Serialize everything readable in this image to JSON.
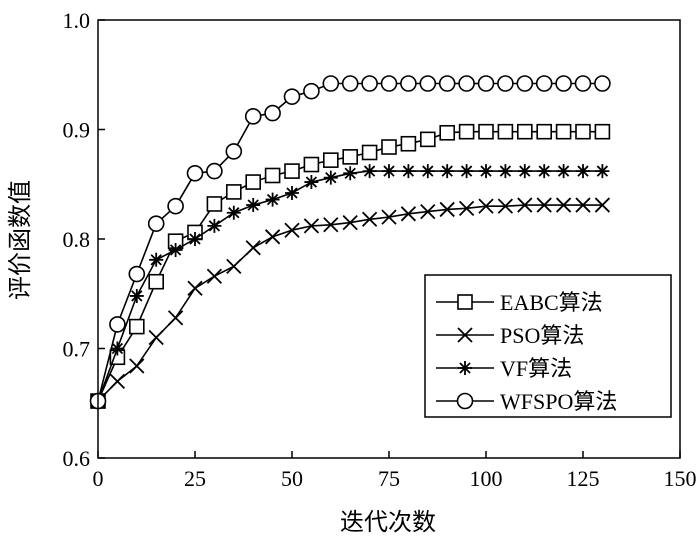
{
  "chart_data": {
    "type": "line",
    "title": "",
    "xlabel": "迭代次数",
    "ylabel": "评价函数值",
    "xlim": [
      0,
      150
    ],
    "ylim": [
      0.6,
      1.0
    ],
    "xticks": [
      0,
      25,
      50,
      75,
      100,
      125,
      150
    ],
    "yticks": [
      0.6,
      0.7,
      0.8,
      0.9,
      1.0
    ],
    "xtick_labels": [
      "0",
      "25",
      "50",
      "75",
      "100",
      "125",
      "150"
    ],
    "ytick_labels": [
      "0.6",
      "0.7",
      "0.8",
      "0.9",
      "1.0"
    ],
    "grid": false,
    "legend_position": "bottom-right",
    "series": [
      {
        "name": "EABC算法",
        "marker": "square",
        "x": [
          0,
          5,
          10,
          15,
          20,
          25,
          30,
          35,
          40,
          45,
          50,
          55,
          60,
          65,
          70,
          75,
          80,
          85,
          90,
          95,
          100,
          105,
          110,
          115,
          120,
          125,
          130
        ],
        "y": [
          0.652,
          0.692,
          0.72,
          0.761,
          0.798,
          0.806,
          0.832,
          0.843,
          0.852,
          0.858,
          0.862,
          0.868,
          0.872,
          0.875,
          0.879,
          0.884,
          0.887,
          0.891,
          0.897,
          0.898,
          0.898,
          0.898,
          0.898,
          0.898,
          0.898,
          0.898,
          0.898
        ]
      },
      {
        "name": "PSO算法",
        "marker": "x",
        "x": [
          0,
          5,
          10,
          15,
          20,
          25,
          30,
          35,
          40,
          45,
          50,
          55,
          60,
          65,
          70,
          75,
          80,
          85,
          90,
          95,
          100,
          105,
          110,
          115,
          120,
          125,
          130
        ],
        "y": [
          0.652,
          0.67,
          0.684,
          0.71,
          0.728,
          0.755,
          0.766,
          0.775,
          0.792,
          0.802,
          0.808,
          0.812,
          0.813,
          0.815,
          0.818,
          0.82,
          0.823,
          0.825,
          0.827,
          0.828,
          0.83,
          0.83,
          0.831,
          0.831,
          0.831,
          0.831,
          0.831
        ]
      },
      {
        "name": "VF算法",
        "marker": "asterisk",
        "x": [
          0,
          5,
          10,
          15,
          20,
          25,
          30,
          35,
          40,
          45,
          50,
          55,
          60,
          65,
          70,
          75,
          80,
          85,
          90,
          95,
          100,
          105,
          110,
          115,
          120,
          125,
          130
        ],
        "y": [
          0.652,
          0.7,
          0.748,
          0.781,
          0.79,
          0.8,
          0.812,
          0.824,
          0.831,
          0.836,
          0.842,
          0.852,
          0.856,
          0.86,
          0.862,
          0.862,
          0.862,
          0.862,
          0.862,
          0.862,
          0.862,
          0.862,
          0.862,
          0.862,
          0.862,
          0.862,
          0.862
        ]
      },
      {
        "name": "WFSPO算法",
        "marker": "circle",
        "x": [
          0,
          5,
          10,
          15,
          20,
          25,
          30,
          35,
          40,
          45,
          50,
          55,
          60,
          65,
          70,
          75,
          80,
          85,
          90,
          95,
          100,
          105,
          110,
          115,
          120,
          125,
          130
        ],
        "y": [
          0.652,
          0.722,
          0.768,
          0.814,
          0.83,
          0.86,
          0.862,
          0.88,
          0.912,
          0.915,
          0.93,
          0.935,
          0.942,
          0.942,
          0.942,
          0.942,
          0.942,
          0.942,
          0.942,
          0.942,
          0.942,
          0.942,
          0.942,
          0.942,
          0.942,
          0.942,
          0.942
        ]
      }
    ]
  }
}
